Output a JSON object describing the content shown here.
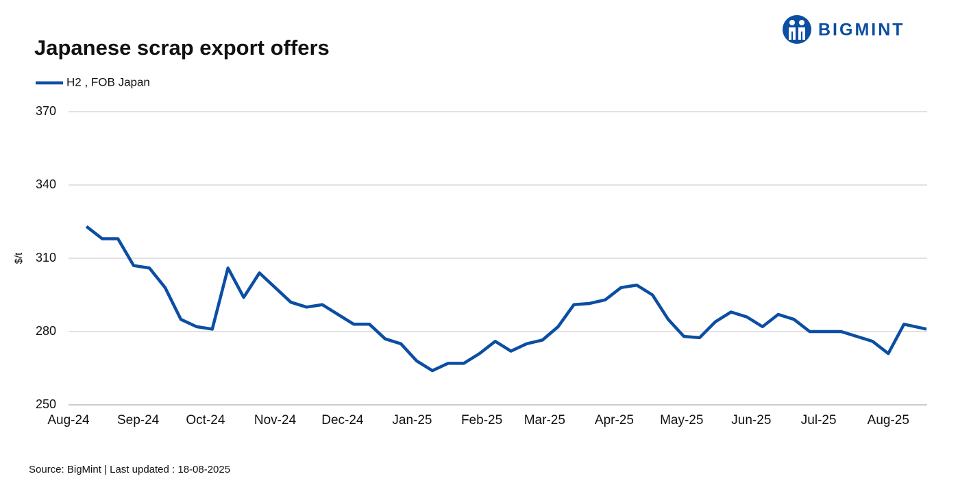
{
  "chart_data": {
    "type": "line",
    "title": "Japanese scrap export offers",
    "brand": "BIGMINT",
    "source": "Source: BigMint  | Last updated : 18-08-2025",
    "ylabel": "$/t",
    "x": [
      8,
      15,
      22,
      29,
      36,
      43,
      50,
      57,
      64,
      71,
      78,
      85,
      92,
      99,
      106,
      113,
      120,
      127,
      134,
      141,
      148,
      155,
      162,
      169,
      176,
      183,
      190,
      197,
      204,
      211,
      218,
      225,
      232,
      239,
      246,
      253,
      260,
      267,
      274,
      281,
      288,
      295,
      302,
      309,
      316,
      323,
      330,
      337,
      344,
      351,
      358,
      365,
      372,
      382
    ],
    "series": [
      {
        "name": "H2 , FOB Japan",
        "color": "#0b4ea2",
        "values": [
          323,
          318,
          318,
          307,
          306,
          298,
          285,
          282,
          281,
          306,
          294,
          304,
          298,
          292,
          290,
          291,
          287,
          283,
          283,
          277,
          275,
          268,
          264,
          267,
          267,
          271,
          276,
          272,
          275,
          276.5,
          282,
          291,
          291.5,
          293,
          298,
          299,
          295,
          285,
          278,
          277.5,
          284,
          288,
          286,
          282,
          287,
          285,
          280,
          280,
          280,
          278,
          276,
          271,
          283,
          281
        ]
      }
    ],
    "xlim": [
      0,
      382
    ],
    "xticks": [
      {
        "value": 0,
        "label": "Aug-24"
      },
      {
        "value": 31,
        "label": "Sep-24"
      },
      {
        "value": 61,
        "label": "Oct-24"
      },
      {
        "value": 92,
        "label": "Nov-24"
      },
      {
        "value": 122,
        "label": "Dec-24"
      },
      {
        "value": 153,
        "label": "Jan-25"
      },
      {
        "value": 184,
        "label": "Feb-25"
      },
      {
        "value": 212,
        "label": "Mar-25"
      },
      {
        "value": 243,
        "label": "Apr-25"
      },
      {
        "value": 273,
        "label": "May-25"
      },
      {
        "value": 304,
        "label": "Jun-25"
      },
      {
        "value": 334,
        "label": "Jul-25"
      },
      {
        "value": 365,
        "label": "Aug-25"
      }
    ],
    "ylim": [
      250,
      370
    ],
    "yticks": [
      250,
      280,
      310,
      340,
      370
    ],
    "grid": true
  }
}
